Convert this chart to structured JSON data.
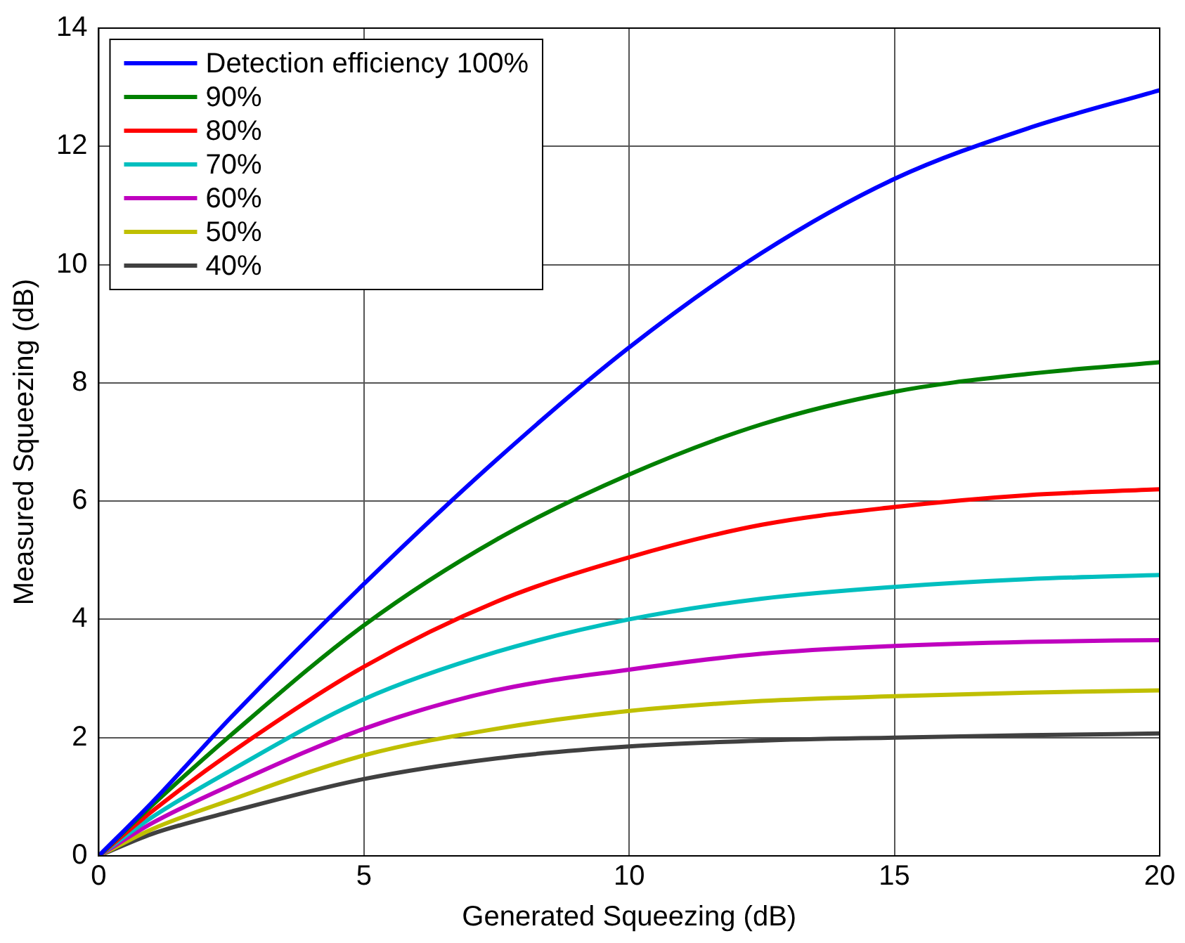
{
  "chart_data": {
    "type": "line",
    "xlabel": "Generated Squeezing (dB)",
    "ylabel": "Measured Squeezing (dB)",
    "x": [
      0,
      1,
      2.5,
      5,
      7.5,
      10,
      12.5,
      15,
      17.5,
      20
    ],
    "xlim": [
      0,
      20
    ],
    "xticks": [
      0,
      5,
      10,
      15,
      20
    ],
    "ylim": [
      0,
      14
    ],
    "yticks": [
      0,
      2,
      4,
      6,
      8,
      10,
      12,
      14
    ],
    "grid": true,
    "legend": "top left",
    "marker": "none",
    "line_style": "solid",
    "series": [
      {
        "name": "Detection efficiency 100%",
        "color": "#0000ff",
        "values": [
          0,
          0.9,
          2.35,
          4.6,
          6.7,
          8.6,
          10.2,
          11.45,
          12.3,
          12.95
        ]
      },
      {
        "name": "90%",
        "color": "#008000",
        "values": [
          0,
          0.85,
          2.05,
          3.9,
          5.35,
          6.45,
          7.3,
          7.85,
          8.15,
          8.35
        ]
      },
      {
        "name": "80%",
        "color": "#ff0000",
        "values": [
          0,
          0.75,
          1.75,
          3.2,
          4.3,
          5.05,
          5.6,
          5.9,
          6.1,
          6.2
        ]
      },
      {
        "name": "70%",
        "color": "#00bfbf",
        "values": [
          0,
          0.65,
          1.45,
          2.65,
          3.45,
          4.0,
          4.35,
          4.55,
          4.68,
          4.75
        ]
      },
      {
        "name": "60%",
        "color": "#bf00bf",
        "values": [
          0,
          0.55,
          1.2,
          2.15,
          2.8,
          3.15,
          3.42,
          3.55,
          3.62,
          3.65
        ]
      },
      {
        "name": "50%",
        "color": "#bfbf00",
        "values": [
          0,
          0.45,
          0.95,
          1.7,
          2.15,
          2.45,
          2.62,
          2.7,
          2.76,
          2.8
        ]
      },
      {
        "name": "40%",
        "color": "#404040",
        "values": [
          0,
          0.37,
          0.75,
          1.3,
          1.65,
          1.85,
          1.95,
          2.0,
          2.04,
          2.07
        ]
      }
    ]
  }
}
